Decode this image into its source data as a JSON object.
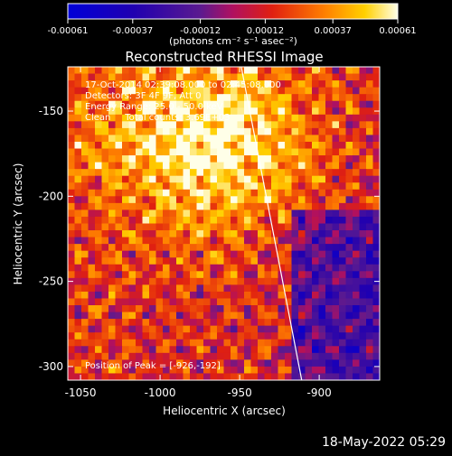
{
  "chart_data": {
    "type": "heatmap",
    "title": "Reconstructed RHESSI Image",
    "xlabel": "Heliocentric X (arcsec)",
    "ylabel": "Heliocentric Y (arcsec)",
    "xlim": [
      -1058,
      -862
    ],
    "ylim": [
      -308,
      -124
    ],
    "x_ticks": [
      -1050,
      -1000,
      -950,
      -900
    ],
    "y_ticks": [
      -150,
      -200,
      -250,
      -300
    ],
    "colorbar": {
      "ticks": [
        -0.00061,
        -0.00037,
        -0.00012,
        0.00012,
        0.00037,
        0.00061
      ],
      "tick_labels": [
        "-0.00061",
        "-0.00037",
        "-0.00012",
        "0.00012",
        "0.00037",
        "0.00061"
      ],
      "range": [
        -0.00061,
        0.00061
      ],
      "unit_label": "(photons cm⁻² s⁻¹ asec⁻²)"
    },
    "annotations": [
      "17-Oct-2014 02:39:08.000 to 02:45:08.000",
      "Detectors: 3F 4F 9F, Att 0",
      "Energy Range: 25.0 - 50.0 keV",
      "Clean     Total counts: 3.69E+03"
    ],
    "peak_label": "Position of Peak = [-926,-192]",
    "peak": [
      -926,
      -192
    ],
    "limb_line": [
      [
        -949,
        -124
      ],
      [
        -911,
        -308
      ]
    ],
    "grid": false
  },
  "footer": {
    "timestamp": "18-May-2022 05:29"
  }
}
